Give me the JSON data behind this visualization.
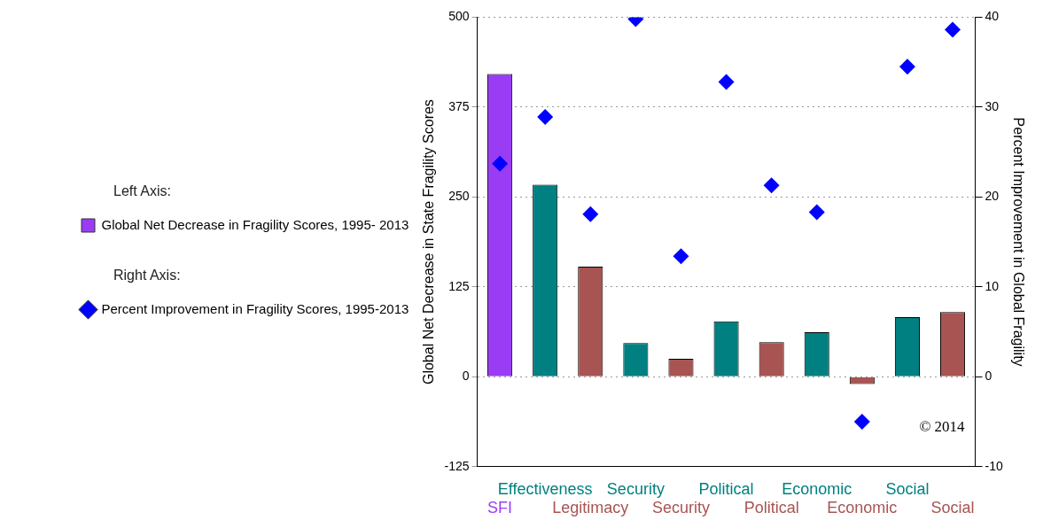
{
  "chart_data": {
    "type": "bar",
    "categories": [
      "SFI",
      "Effectiveness",
      "Legitimacy",
      "Security",
      "Security",
      "Political",
      "Political",
      "Economic",
      "Economic",
      "Social",
      "Social"
    ],
    "series": [
      {
        "name": "Global Net Decrease in Fragility Scores, 1995- 2013",
        "colors": [
          "#9b3cf5",
          "#008080",
          "#a85452",
          "#008080",
          "#a85452",
          "#008080",
          "#a85452",
          "#008080",
          "#a85452",
          "#008080",
          "#a85452"
        ],
        "values": [
          421,
          267,
          153,
          47,
          25,
          77,
          48,
          62,
          -10,
          83,
          90
        ]
      },
      {
        "name": "Percent Improvement in Fragility Scores, 1995-2013",
        "type": "scatter",
        "axis": "y2",
        "color": "#0000ff",
        "values": [
          23.7,
          28.9,
          18.1,
          39.8,
          13.4,
          32.8,
          21.3,
          18.3,
          -5.0,
          34.5,
          38.6
        ]
      }
    ],
    "ylabel": "Global Net Decrease in State Fragility Scores",
    "y2label": "Percent Improvement in Global Fragility",
    "ylim": [
      -125,
      500
    ],
    "yticks": [
      -125,
      0,
      125,
      250,
      375,
      500
    ],
    "y2lim": [
      -10,
      40
    ],
    "y2ticks": [
      -10,
      0,
      10,
      20,
      30,
      40
    ],
    "grid": "y",
    "legend": "left",
    "marker": "diamond",
    "annotations": [
      "Left Axis:",
      "Right Axis:",
      "© 2014"
    ]
  }
}
